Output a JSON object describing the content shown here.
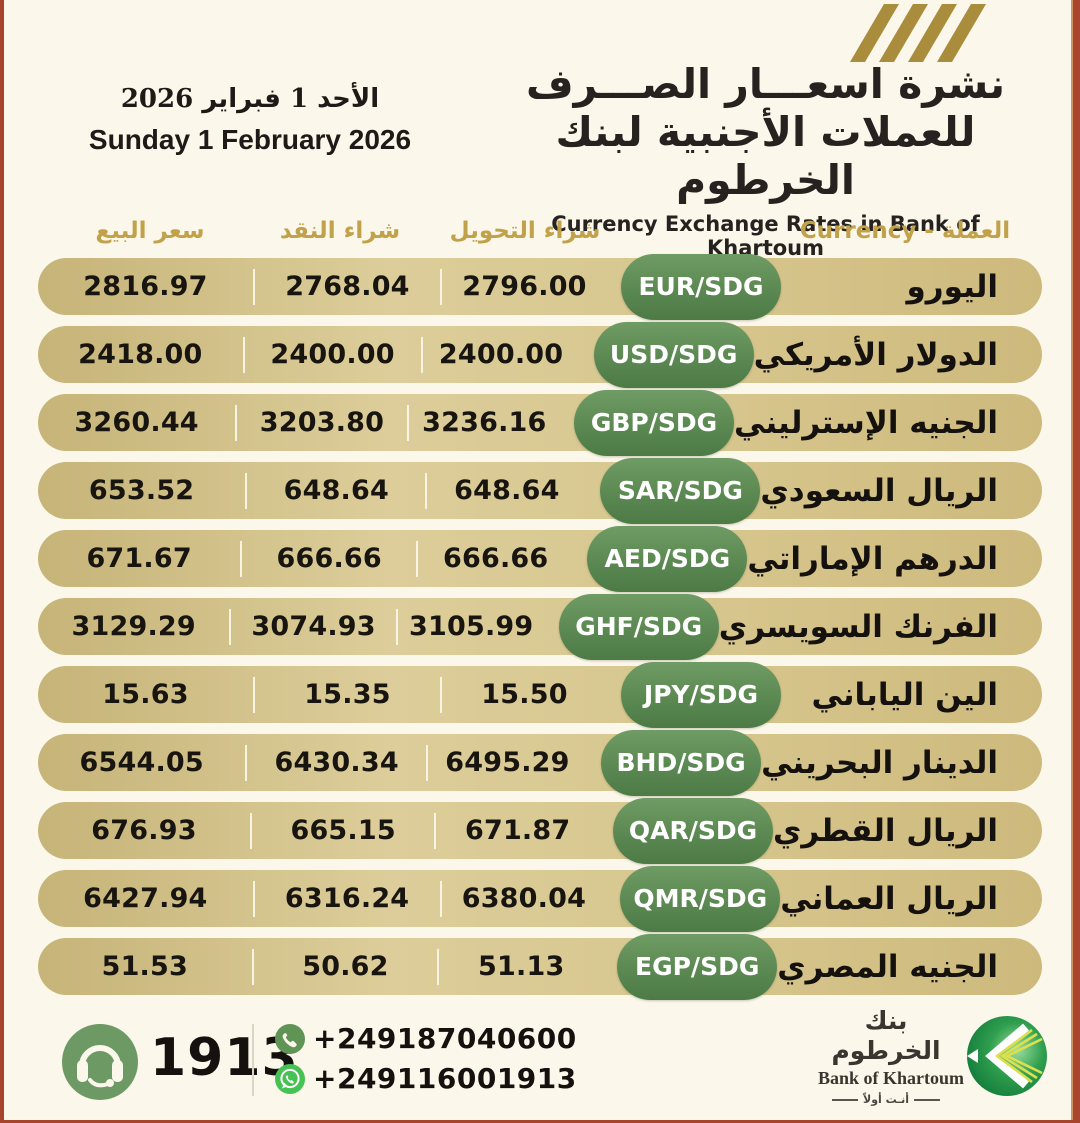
{
  "header": {
    "title_ar_line1": "نشرة اسعـــار الصـــرف",
    "title_ar_line2": "للعملات الأجنبية لبنك الخرطوم",
    "subtitle_en": "Currency Exchange Rates in Bank of Khartoum",
    "date_ar": "الأحد 1 فبراير 2026",
    "date_en": "Sunday 1 February 2026"
  },
  "table": {
    "columns": {
      "currency": "العملة - Currency",
      "transfer_buy": "شراء التحويل",
      "cash_buy": "شراء النقد",
      "sell": "سعر البيع"
    },
    "rows": [
      {
        "name_ar": "اليورو",
        "code": "EUR/SDG",
        "transfer_buy": "2796.00",
        "cash_buy": "2768.04",
        "sell": "2816.97"
      },
      {
        "name_ar": "الدولار الأمريكي",
        "code": "USD/SDG",
        "transfer_buy": "2400.00",
        "cash_buy": "2400.00",
        "sell": "2418.00"
      },
      {
        "name_ar": "الجنيه الإسترليني",
        "code": "GBP/SDG",
        "transfer_buy": "3236.16",
        "cash_buy": "3203.80",
        "sell": "3260.44"
      },
      {
        "name_ar": "الريال السعودي",
        "code": "SAR/SDG",
        "transfer_buy": "648.64",
        "cash_buy": "648.64",
        "sell": "653.52"
      },
      {
        "name_ar": "الدرهم الإماراتي",
        "code": "AED/SDG",
        "transfer_buy": "666.66",
        "cash_buy": "666.66",
        "sell": "671.67"
      },
      {
        "name_ar": "الفرنك السويسري",
        "code": "GHF/SDG",
        "transfer_buy": "3105.99",
        "cash_buy": "3074.93",
        "sell": "3129.29"
      },
      {
        "name_ar": "الين الياباني",
        "code": "JPY/SDG",
        "transfer_buy": "15.50",
        "cash_buy": "15.35",
        "sell": "15.63"
      },
      {
        "name_ar": "الدينار البحريني",
        "code": "BHD/SDG",
        "transfer_buy": "6495.29",
        "cash_buy": "6430.34",
        "sell": "6544.05"
      },
      {
        "name_ar": "الريال القطري",
        "code": "QAR/SDG",
        "transfer_buy": "671.87",
        "cash_buy": "665.15",
        "sell": "676.93"
      },
      {
        "name_ar": "الريال العماني",
        "code": "QMR/SDG",
        "transfer_buy": "6380.04",
        "cash_buy": "6316.24",
        "sell": "6427.94"
      },
      {
        "name_ar": "الجنيه المصري",
        "code": "EGP/SDG",
        "transfer_buy": "51.13",
        "cash_buy": "50.62",
        "sell": "51.53"
      }
    ]
  },
  "footer": {
    "hotline_label": "1913",
    "phone_number": "+249187040600",
    "whatsapp_number": "+249116001913",
    "bank_name_ar": "بنك الخرطوم",
    "bank_name_en": "Bank of Khartoum",
    "bank_tagline_ar": "أنـت أولاً"
  },
  "colors": {
    "background": "#fbf7ea",
    "row_tan": "#d5c48b",
    "badge_green": "#5f8f54",
    "header_gold": "#c2a14b",
    "frame_maroon": "#a8432c",
    "stripe_gold": "#a98c3c",
    "footer_icon_green": "#6d9a64",
    "whatsapp_green": "#46c254"
  }
}
